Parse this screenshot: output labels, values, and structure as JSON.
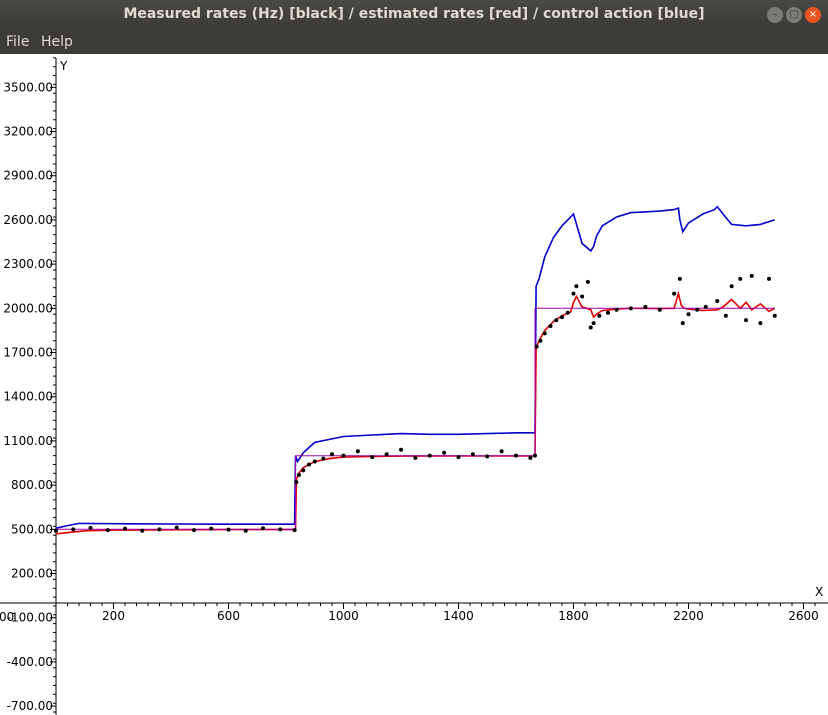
{
  "window": {
    "title": "Measured rates (Hz) [black] / estimated rates [red] / control action [blue]",
    "controls": [
      "minimize",
      "maximize",
      "close"
    ]
  },
  "menu": {
    "file": "File",
    "help": "Help"
  },
  "colors": {
    "measured": "#000000",
    "estimated": "#e00000",
    "control": "#0000cc",
    "setpoint": "#a000b0"
  },
  "chart_data": {
    "type": "line",
    "title": "Measured rates (Hz) [black] / estimated rates [red] / control action [blue]",
    "xlabel": "X",
    "ylabel": "Y",
    "xlim": [
      0,
      2650
    ],
    "ylim": [
      -800,
      3700
    ],
    "x_ticks": [
      200,
      600,
      1000,
      1400,
      1800,
      2200,
      2600
    ],
    "x_tick_labels": [
      "200",
      "600",
      "1000",
      "1400",
      "1800",
      "2200",
      "2600"
    ],
    "x_origin_label": "00",
    "y_ticks": [
      3500,
      3200,
      2900,
      2600,
      2300,
      2000,
      1700,
      1400,
      1100,
      800,
      500,
      200,
      -100,
      -400,
      -700
    ],
    "y_tick_labels": [
      "3500.00",
      "3200.00",
      "2900.00",
      "2600.00",
      "2300.00",
      "2000.00",
      "1700.00",
      "1400.00",
      "1100.00",
      "800.00",
      "500.00",
      "200.00",
      "-100.00",
      "-400.00",
      "-700.00"
    ],
    "series": [
      {
        "name": "control action",
        "color": "#0000cc",
        "style": "line",
        "x": [
          0,
          40,
          80,
          200,
          400,
          600,
          800,
          830,
          833,
          840,
          860,
          900,
          1000,
          1100,
          1200,
          1300,
          1400,
          1500,
          1600,
          1666,
          1670,
          1680,
          1700,
          1730,
          1760,
          1790,
          1800,
          1830,
          1860,
          1870,
          1880,
          1900,
          1950,
          2000,
          2100,
          2150,
          2165,
          2170,
          2180,
          2200,
          2250,
          2290,
          2300,
          2320,
          2350,
          2400,
          2450,
          2500
        ],
        "y": [
          508,
          525,
          540,
          538,
          536,
          535,
          535,
          535,
          1000,
          960,
          1020,
          1090,
          1130,
          1140,
          1150,
          1145,
          1145,
          1150,
          1155,
          1155,
          2150,
          2200,
          2350,
          2480,
          2560,
          2620,
          2640,
          2440,
          2390,
          2420,
          2490,
          2560,
          2620,
          2650,
          2660,
          2670,
          2680,
          2600,
          2520,
          2580,
          2640,
          2670,
          2690,
          2640,
          2570,
          2560,
          2570,
          2600
        ]
      },
      {
        "name": "estimated rates",
        "color": "#e00000",
        "style": "line",
        "x": [
          0,
          100,
          200,
          400,
          600,
          800,
          833,
          836,
          845,
          860,
          900,
          950,
          1000,
          1100,
          1200,
          1400,
          1600,
          1666,
          1670,
          1680,
          1700,
          1730,
          1760,
          1790,
          1800,
          1810,
          1830,
          1860,
          1870,
          1880,
          1900,
          1950,
          2000,
          2100,
          2150,
          2165,
          2175,
          2185,
          2200,
          2250,
          2300,
          2320,
          2350,
          2380,
          2400,
          2420,
          2450,
          2480,
          2500
        ],
        "y": [
          470,
          490,
          495,
          497,
          498,
          498,
          498,
          840,
          880,
          920,
          960,
          980,
          990,
          995,
          997,
          998,
          998,
          998,
          1730,
          1780,
          1850,
          1910,
          1950,
          1975,
          2040,
          2080,
          2010,
          1990,
          1940,
          1960,
          1985,
          1995,
          2000,
          1998,
          2000,
          2100,
          2020,
          2000,
          1995,
          1985,
          1990,
          2010,
          2060,
          2000,
          2040,
          1990,
          2030,
          1980,
          2000
        ]
      },
      {
        "name": "setpoint",
        "color": "#a000b0",
        "style": "step",
        "x": [
          0,
          833,
          833,
          1666,
          1666,
          2500
        ],
        "y": [
          500,
          500,
          1000,
          1000,
          2000,
          2000
        ]
      },
      {
        "name": "measured rates",
        "color": "#000000",
        "style": "scatter",
        "x": [
          0,
          60,
          120,
          180,
          240,
          300,
          360,
          420,
          480,
          540,
          600,
          660,
          720,
          780,
          830,
          836,
          845,
          860,
          880,
          900,
          930,
          960,
          1000,
          1050,
          1100,
          1150,
          1200,
          1250,
          1300,
          1350,
          1400,
          1450,
          1500,
          1550,
          1600,
          1650,
          1666,
          1672,
          1685,
          1700,
          1720,
          1740,
          1760,
          1780,
          1800,
          1810,
          1830,
          1850,
          1860,
          1870,
          1890,
          1920,
          1950,
          2000,
          2050,
          2100,
          2150,
          2170,
          2180,
          2200,
          2230,
          2260,
          2300,
          2330,
          2350,
          2380,
          2400,
          2420,
          2450,
          2480,
          2500
        ],
        "y": [
          490,
          500,
          510,
          495,
          505,
          490,
          500,
          512,
          495,
          505,
          498,
          490,
          507,
          500,
          495,
          820,
          870,
          900,
          940,
          960,
          980,
          1010,
          1000,
          1030,
          990,
          1010,
          1040,
          985,
          1000,
          1020,
          990,
          1010,
          995,
          1030,
          1000,
          985,
          1000,
          1740,
          1780,
          1830,
          1880,
          1920,
          1940,
          1970,
          2100,
          2150,
          2080,
          2180,
          1870,
          1900,
          1950,
          1970,
          1990,
          2000,
          2010,
          1990,
          2100,
          2200,
          1900,
          1960,
          1990,
          2010,
          2050,
          1950,
          2150,
          2200,
          1920,
          2220,
          1900,
          2200,
          1950
        ]
      }
    ]
  }
}
